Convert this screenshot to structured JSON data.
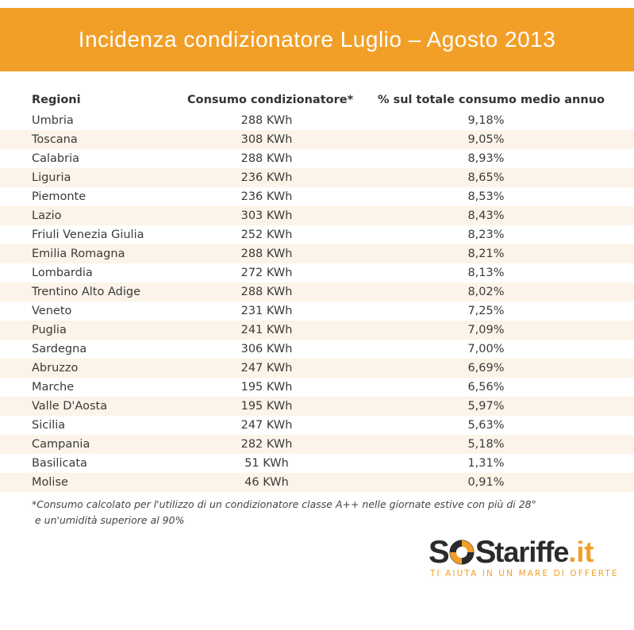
{
  "title": "Incidenza condizionatore Luglio – Agosto 2013",
  "colors": {
    "header_bg": "#f29f27",
    "row_shade": "#fcf4e8",
    "brand_orange": "#f29f27"
  },
  "chart_data": {
    "type": "table",
    "title": "Incidenza condizionatore Luglio – Agosto 2013",
    "columns": [
      "Regioni",
      "Consumo condizionatore*",
      "% sul totale consumo medio annuo"
    ],
    "rows": [
      [
        "Umbria",
        "288 KWh",
        "9,18%"
      ],
      [
        "Toscana",
        "308 KWh",
        "9,05%"
      ],
      [
        "Calabria",
        "288 KWh",
        "8,93%"
      ],
      [
        "Liguria",
        "236 KWh",
        "8,65%"
      ],
      [
        "Piemonte",
        "236 KWh",
        "8,53%"
      ],
      [
        "Lazio",
        "303 KWh",
        "8,43%"
      ],
      [
        "Friuli Venezia Giulia",
        "252 KWh",
        "8,23%"
      ],
      [
        "Emilia Romagna",
        "288 KWh",
        "8,21%"
      ],
      [
        "Lombardia",
        "272 KWh",
        "8,13%"
      ],
      [
        "Trentino Alto Adige",
        "288 KWh",
        "8,02%"
      ],
      [
        "Veneto",
        "231 KWh",
        "7,25%"
      ],
      [
        "Puglia",
        "241 KWh",
        "7,09%"
      ],
      [
        "Sardegna",
        "306 KWh",
        "7,00%"
      ],
      [
        "Abruzzo",
        "247 KWh",
        "6,69%"
      ],
      [
        "Marche",
        "195 KWh",
        "6,56%"
      ],
      [
        "Valle D'Aosta",
        "195 KWh",
        "5,97%"
      ],
      [
        "Sicilia",
        "247 KWh",
        "5,63%"
      ],
      [
        "Campania",
        "282 KWh",
        "5,18%"
      ],
      [
        "Basilicata",
        "51 KWh",
        "1,31%"
      ],
      [
        "Molise",
        "46 KWh",
        "0,91%"
      ]
    ],
    "footnote_line1": "*Consumo calcolato per l'utilizzo di un condizionatore classe A++ nelle giornate estive con più di 28°",
    "footnote_line2": "e un'umidità superiore al 90%"
  },
  "logo": {
    "text_sos": "SOS",
    "text_tariffe": "tariffe",
    "text_it": ".it",
    "tagline": "TI AIUTA IN UN MARE DI OFFERTE",
    "icon": "lifebuoy-icon"
  }
}
